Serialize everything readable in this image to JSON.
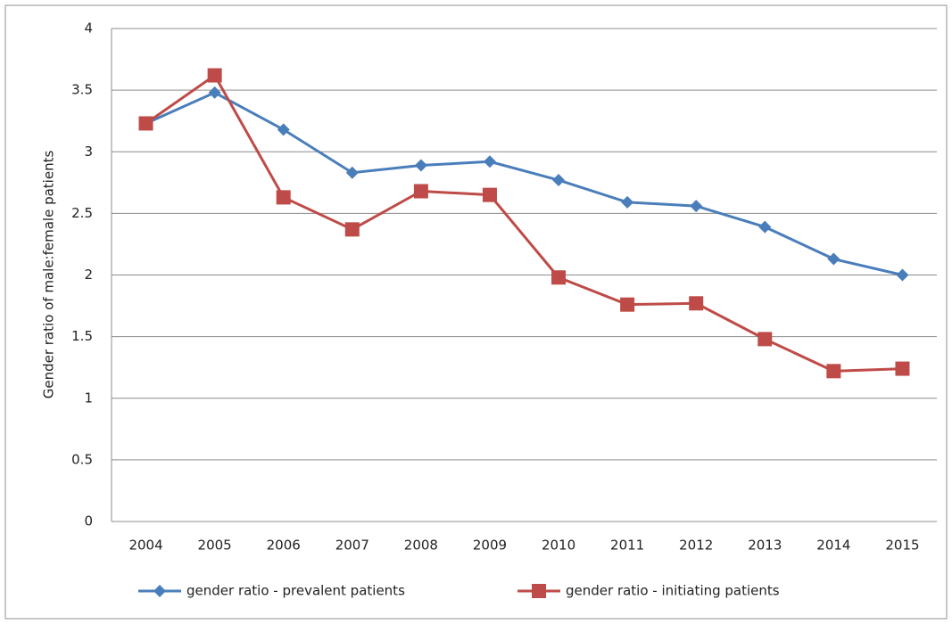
{
  "chart_data": {
    "type": "line",
    "y_label": "Gender ratio of male:female patients",
    "categories": [
      "2004",
      "2005",
      "2006",
      "2007",
      "2008",
      "2009",
      "2010",
      "2011",
      "2012",
      "2013",
      "2014",
      "2015"
    ],
    "series": [
      {
        "name": "gender ratio - prevalent patients",
        "color": "#4a7ebb",
        "marker": "diamond",
        "values": [
          3.23,
          3.48,
          3.18,
          2.83,
          2.89,
          2.92,
          2.77,
          2.59,
          2.56,
          2.39,
          2.13,
          2.0
        ]
      },
      {
        "name": "gender ratio - initiating patients",
        "color": "#be4b48",
        "marker": "square",
        "values": [
          3.23,
          3.62,
          2.63,
          2.37,
          2.68,
          2.65,
          1.98,
          1.76,
          1.77,
          1.48,
          1.22,
          1.24
        ]
      }
    ],
    "ylim": [
      0,
      4
    ],
    "yticks": [
      0,
      0.5,
      1,
      1.5,
      2,
      2.5,
      3,
      3.5,
      4
    ],
    "grid": true,
    "legend": "bottom"
  }
}
